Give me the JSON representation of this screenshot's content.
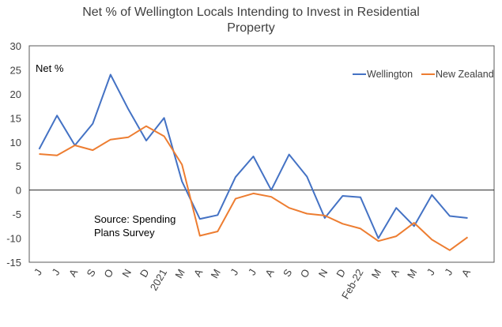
{
  "chart_data": {
    "type": "line",
    "title": "Net % of Wellington Locals Intending to Invest in Residential Property",
    "ylabel": "Net %",
    "xlabel": "",
    "ylim": [
      -15,
      30
    ],
    "yticks": [
      30,
      25,
      20,
      15,
      10,
      5,
      0,
      -5,
      -10,
      -15
    ],
    "categories": [
      "J",
      "J",
      "A",
      "S",
      "O",
      "N",
      "D",
      "2021",
      "M",
      "A",
      "M",
      "J",
      "J",
      "A",
      "S",
      "O",
      "N",
      "D",
      "Feb-22",
      "M",
      "A",
      "M",
      "J",
      "J",
      "A"
    ],
    "series": [
      {
        "name": "Wellington",
        "color": "#4472C4",
        "values": [
          8.5,
          15.5,
          9.3,
          13.8,
          24.0,
          16.8,
          10.3,
          15.0,
          1.8,
          -6.0,
          -5.2,
          2.7,
          7.0,
          0.0,
          7.4,
          2.8,
          -5.8,
          -1.2,
          -1.5,
          -10.0,
          -3.7,
          -7.5,
          -1.0,
          -5.4,
          -5.8
        ]
      },
      {
        "name": "New Zealand",
        "color": "#ED7D31",
        "values": [
          7.5,
          7.2,
          9.3,
          8.3,
          10.5,
          11.0,
          13.3,
          11.2,
          5.3,
          -9.5,
          -8.6,
          -1.8,
          -0.7,
          -1.4,
          -3.7,
          -4.9,
          -5.3,
          -7.0,
          -8.0,
          -10.6,
          -9.6,
          -6.8,
          -10.3,
          -12.5,
          -9.8
        ]
      }
    ],
    "annotation": "Source: Spending Plans Survey",
    "legend_position": "top-right",
    "grid": false
  }
}
